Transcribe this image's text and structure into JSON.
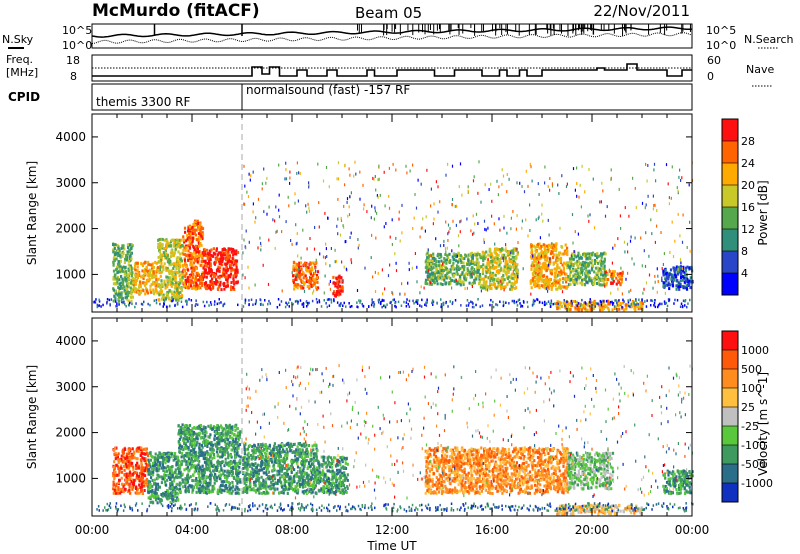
{
  "header": {
    "station": "McMurdo (fitACF)",
    "beam": "Beam 05",
    "date": "22/Nov/2011"
  },
  "noise_panel": {
    "left_label": "N.Sky",
    "right_label": "N.Search",
    "ticks": [
      "10^5",
      "10^0"
    ]
  },
  "freq_panel": {
    "left_label_1": "Freq.",
    "left_label_2": "[MHz]",
    "right_label": "Nave",
    "left_ticks": [
      "18",
      "8"
    ],
    "right_ticks": [
      "60",
      "0"
    ]
  },
  "cpid_panel": {
    "label": "CPID",
    "program_1": "themis 3300 RF",
    "program_2": "normalsound (fast) -157 RF",
    "switch_time_hours": 6.0
  },
  "chart_data": [
    {
      "type": "heatmap",
      "panel": "power",
      "ylabel": "Slant Range [km]",
      "xlabel": "Time UT",
      "x_range_hours": [
        0,
        24
      ],
      "ylim": [
        180,
        4500
      ],
      "yticks": [
        1000,
        2000,
        3000,
        4000
      ],
      "xticks": [
        "00:00",
        "04:00",
        "08:00",
        "12:00",
        "16:00",
        "20:00",
        "00:00"
      ],
      "colorbar": {
        "label": "Power [dB]",
        "ticks": [
          "4",
          "8",
          "12",
          "16",
          "20",
          "24",
          "28"
        ],
        "colors": [
          "#0000ff",
          "#2a46c8",
          "#2f8f7a",
          "#56a84c",
          "#c8c828",
          "#ffaa00",
          "#ff6400",
          "#ff1010"
        ]
      },
      "echo_regions": [
        {
          "t0": 0.8,
          "t1": 1.6,
          "r0": 400,
          "r1": 1700,
          "level": 3
        },
        {
          "t0": 1.6,
          "t1": 2.6,
          "r0": 600,
          "r1": 1300,
          "level": 5
        },
        {
          "t0": 2.6,
          "t1": 3.6,
          "r0": 450,
          "r1": 1800,
          "level": 4
        },
        {
          "t0": 3.6,
          "t1": 4.4,
          "r0": 700,
          "r1": 2200,
          "level": 6
        },
        {
          "t0": 4.4,
          "t1": 5.8,
          "r0": 700,
          "r1": 1600,
          "level": 7
        },
        {
          "t0": 8.0,
          "t1": 9.0,
          "r0": 700,
          "r1": 1300,
          "level": 6
        },
        {
          "t0": 9.6,
          "t1": 10.0,
          "r0": 550,
          "r1": 1000,
          "level": 7
        },
        {
          "t0": 13.3,
          "t1": 15.5,
          "r0": 800,
          "r1": 1500,
          "level": 3
        },
        {
          "t0": 15.5,
          "t1": 17.0,
          "r0": 700,
          "r1": 1600,
          "level": 4
        },
        {
          "t0": 17.5,
          "t1": 19.0,
          "r0": 700,
          "r1": 1700,
          "level": 5
        },
        {
          "t0": 19.0,
          "t1": 20.5,
          "r0": 800,
          "r1": 1500,
          "level": 3
        },
        {
          "t0": 20.5,
          "t1": 21.2,
          "r0": 800,
          "r1": 1100,
          "level": 6
        },
        {
          "t0": 18.5,
          "t1": 22.0,
          "r0": 250,
          "r1": 450,
          "level": 5
        },
        {
          "t0": 22.8,
          "t1": 24.0,
          "r0": 700,
          "r1": 1200,
          "level": 1
        }
      ]
    },
    {
      "type": "heatmap",
      "panel": "velocity",
      "ylabel": "Slant Range [km]",
      "xlabel": "Time UT",
      "x_range_hours": [
        0,
        24
      ],
      "ylim": [
        180,
        4500
      ],
      "yticks": [
        1000,
        2000,
        3000,
        4000
      ],
      "xticks": [
        "00:00",
        "04:00",
        "08:00",
        "12:00",
        "16:00",
        "20:00",
        "00:00"
      ],
      "colorbar": {
        "label": "Velocity [m s^-1]",
        "ticks": [
          "1000",
          "500",
          "100",
          "25",
          "-25",
          "-100",
          "-500",
          "-1000"
        ],
        "colors": [
          "#1030c0",
          "#2a6e8a",
          "#3f9a60",
          "#5ac83c",
          "#c0c0c0",
          "#ffc040",
          "#ff8c1e",
          "#ff5a0a",
          "#ff1010"
        ]
      },
      "echo_regions": [
        {
          "t0": 0.8,
          "t1": 2.2,
          "r0": 700,
          "r1": 1700,
          "level": 7
        },
        {
          "t0": 2.2,
          "t1": 3.4,
          "r0": 500,
          "r1": 1600,
          "level": 2
        },
        {
          "t0": 3.4,
          "t1": 5.9,
          "r0": 700,
          "r1": 2200,
          "level": 2
        },
        {
          "t0": 6.0,
          "t1": 9.0,
          "r0": 700,
          "r1": 1800,
          "level": 2
        },
        {
          "t0": 9.0,
          "t1": 10.2,
          "r0": 700,
          "r1": 1500,
          "level": 2
        },
        {
          "t0": 13.3,
          "t1": 17.0,
          "r0": 700,
          "r1": 1700,
          "level": 6
        },
        {
          "t0": 17.0,
          "t1": 19.0,
          "r0": 700,
          "r1": 1700,
          "level": 6
        },
        {
          "t0": 19.0,
          "t1": 20.8,
          "r0": 800,
          "r1": 1600,
          "level": 3
        },
        {
          "t0": 18.5,
          "t1": 22.0,
          "r0": 250,
          "r1": 450,
          "level": 5
        },
        {
          "t0": 22.8,
          "t1": 24.0,
          "r0": 700,
          "r1": 1200,
          "level": 2
        }
      ]
    }
  ]
}
